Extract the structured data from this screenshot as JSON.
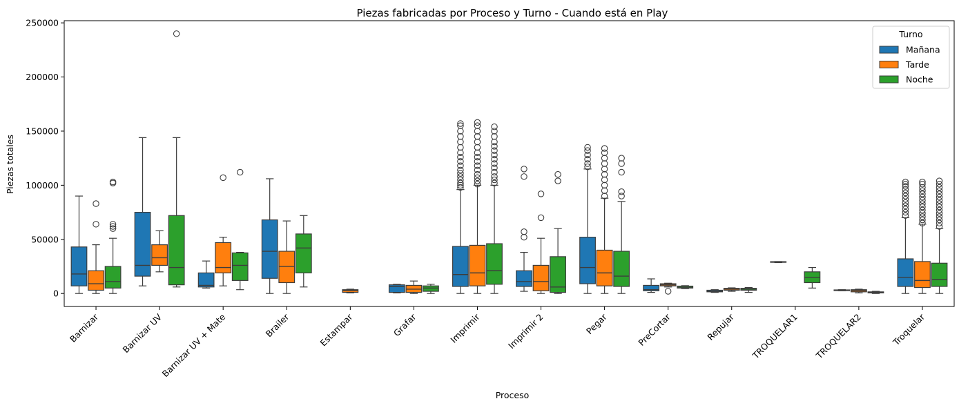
{
  "chart_data": {
    "type": "box",
    "title": "Piezas fabricadas por Proceso y Turno - Cuando está en Play",
    "xlabel": "Proceso",
    "ylabel": "Piezas totales",
    "ylim": [
      -12000,
      252000
    ],
    "yticks": [
      0,
      50000,
      100000,
      150000,
      200000,
      250000
    ],
    "ytick_labels": [
      "0",
      "50000",
      "100000",
      "150000",
      "200000",
      "250000"
    ],
    "grid": false,
    "legend": {
      "title": "Turno",
      "position": "top-right"
    },
    "categories": [
      "Barnizar",
      "Barnizar UV",
      "Barnizar UV + Mate",
      "Brailer",
      "Estampar",
      "Grafar",
      "Imprimir",
      "Imprimir 2",
      "Pegar",
      "PreCortar",
      "Repujar",
      "TROQUELAR1",
      "TROQUELAR2",
      "Troquelar"
    ],
    "series": [
      {
        "name": "Mañana",
        "color": "#1f77b4",
        "boxes": [
          {
            "whislo": 0,
            "q1": 7000,
            "med": 18000,
            "q3": 43000,
            "whishi": 90000,
            "fliers": []
          },
          {
            "whislo": 7000,
            "q1": 16000,
            "med": 26000,
            "q3": 75000,
            "whishi": 144000,
            "fliers": []
          },
          {
            "whislo": 5000,
            "q1": 6000,
            "med": 7500,
            "q3": 19000,
            "whishi": 30000,
            "fliers": []
          },
          {
            "whislo": 0,
            "q1": 14000,
            "med": 39000,
            "q3": 68000,
            "whishi": 106000,
            "fliers": []
          },
          null,
          {
            "whislo": 500,
            "q1": 1000,
            "med": 6500,
            "q3": 8000,
            "whishi": 8500,
            "fliers": []
          },
          {
            "whislo": 0,
            "q1": 6500,
            "med": 17500,
            "q3": 43500,
            "whishi": 96000,
            "fliers": [
              98000,
              100000,
              102000,
              105000,
              108000,
              111000,
              114000,
              118000,
              122000,
              126000,
              130000,
              135000,
              140000,
              145000,
              150000,
              155000,
              157000
            ]
          },
          {
            "whislo": 2000,
            "q1": 6500,
            "med": 11000,
            "q3": 21000,
            "whishi": 38000,
            "fliers": [
              52000,
              57000,
              108000,
              115000
            ]
          },
          {
            "whislo": 0,
            "q1": 9000,
            "med": 24000,
            "q3": 52000,
            "whishi": 115000,
            "fliers": [
              117000,
              120000,
              124000,
              128000,
              132000,
              135000
            ]
          },
          {
            "whislo": 1000,
            "q1": 2500,
            "med": 3500,
            "q3": 7500,
            "whishi": 13500,
            "fliers": []
          },
          {
            "whislo": 1000,
            "q1": 1500,
            "med": 2000,
            "q3": 3000,
            "whishi": 3500,
            "fliers": []
          },
          {
            "whislo": 28500,
            "q1": 29000,
            "med": 29200,
            "q3": 29400,
            "whishi": 29500,
            "fliers": []
          },
          {
            "whislo": 2500,
            "q1": 2700,
            "med": 3000,
            "q3": 3300,
            "whishi": 3500,
            "fliers": []
          },
          {
            "whislo": 0,
            "q1": 6500,
            "med": 15000,
            "q3": 32000,
            "whishi": 70000,
            "fliers": [
              72000,
              75000,
              78000,
              81000,
              84000,
              87000,
              90000,
              93000,
              96000,
              99000,
              101000,
              103000
            ]
          }
        ]
      },
      {
        "name": "Tarde",
        "color": "#ff7f0e",
        "boxes": [
          {
            "whislo": 0,
            "q1": 3000,
            "med": 9000,
            "q3": 21000,
            "whishi": 45000,
            "fliers": [
              64000,
              83000
            ]
          },
          {
            "whislo": 20000,
            "q1": 26000,
            "med": 33000,
            "q3": 45000,
            "whishi": 58000,
            "fliers": []
          },
          {
            "whislo": 7000,
            "q1": 19000,
            "med": 24000,
            "q3": 47000,
            "whishi": 52000,
            "fliers": [
              107000
            ]
          },
          {
            "whislo": 0,
            "q1": 10000,
            "med": 25000,
            "q3": 39000,
            "whishi": 67000,
            "fliers": []
          },
          {
            "whislo": 500,
            "q1": 1000,
            "med": 2500,
            "q3": 3500,
            "whishi": 4000,
            "fliers": []
          },
          {
            "whislo": 0,
            "q1": 1000,
            "med": 4000,
            "q3": 7500,
            "whishi": 11500,
            "fliers": []
          },
          {
            "whislo": 0,
            "q1": 7000,
            "med": 19000,
            "q3": 44500,
            "whishi": 100000,
            "fliers": [
              101000,
              104000,
              107000,
              110000,
              114000,
              118000,
              122000,
              126000,
              130000,
              135000,
              140000,
              145000,
              150000,
              155000,
              158000
            ]
          },
          {
            "whislo": 0,
            "q1": 2500,
            "med": 11000,
            "q3": 26000,
            "whishi": 51000,
            "fliers": [
              70000,
              92000
            ]
          },
          {
            "whislo": 0,
            "q1": 7000,
            "med": 19000,
            "q3": 40000,
            "whishi": 88000,
            "fliers": [
              90000,
              95000,
              100000,
              105000,
              110000,
              115000,
              120000,
              125000,
              130000,
              134000
            ]
          },
          {
            "whislo": 6000,
            "q1": 7000,
            "med": 8000,
            "q3": 9000,
            "whishi": 9500,
            "fliers": [
              2000
            ]
          },
          {
            "whislo": 2000,
            "q1": 3000,
            "med": 4000,
            "q3": 4800,
            "whishi": 5200,
            "fliers": []
          },
          null,
          {
            "whislo": 500,
            "q1": 1500,
            "med": 2500,
            "q3": 3500,
            "whishi": 4000,
            "fliers": []
          },
          {
            "whislo": 0,
            "q1": 5500,
            "med": 12000,
            "q3": 29500,
            "whishi": 64000,
            "fliers": [
              65000,
              68000,
              71000,
              74000,
              77000,
              80000,
              83000,
              86000,
              89000,
              92000,
              95000,
              98000,
              101000,
              103000
            ]
          }
        ]
      },
      {
        "name": "Noche",
        "color": "#2ca02c",
        "boxes": [
          {
            "whislo": 0,
            "q1": 5000,
            "med": 11000,
            "q3": 25000,
            "whishi": 51000,
            "fliers": [
              60000,
              62000,
              64000,
              102000,
              103000
            ]
          },
          {
            "whislo": 6000,
            "q1": 8000,
            "med": 24000,
            "q3": 72000,
            "whishi": 144000,
            "fliers": [
              240000
            ]
          },
          {
            "whislo": 3500,
            "q1": 12000,
            "med": 26000,
            "q3": 37500,
            "whishi": 38000,
            "fliers": [
              112000
            ]
          },
          {
            "whislo": 6000,
            "q1": 19000,
            "med": 42000,
            "q3": 55000,
            "whishi": 72000,
            "fliers": []
          },
          null,
          {
            "whislo": 0,
            "q1": 2000,
            "med": 5000,
            "q3": 7000,
            "whishi": 8500,
            "fliers": []
          },
          {
            "whislo": 0,
            "q1": 8500,
            "med": 21000,
            "q3": 46000,
            "whishi": 100000,
            "fliers": [
              102000,
              105000,
              108000,
              112000,
              116000,
              120000,
              124000,
              128000,
              132000,
              136000,
              140000,
              145000,
              150000,
              154000
            ]
          },
          {
            "whislo": 0,
            "q1": 1000,
            "med": 6000,
            "q3": 34000,
            "whishi": 60000,
            "fliers": [
              104000,
              110000
            ]
          },
          {
            "whislo": 0,
            "q1": 6500,
            "med": 16000,
            "q3": 39000,
            "whishi": 85000,
            "fliers": [
              90000,
              94000,
              112000,
              120000,
              125000
            ]
          },
          {
            "whislo": 4500,
            "q1": 5000,
            "med": 5800,
            "q3": 6800,
            "whishi": 7200,
            "fliers": []
          },
          {
            "whislo": 1000,
            "q1": 3000,
            "med": 4000,
            "q3": 4800,
            "whishi": 5500,
            "fliers": []
          },
          {
            "whislo": 5000,
            "q1": 10000,
            "med": 15000,
            "q3": 20000,
            "whishi": 24000,
            "fliers": []
          },
          {
            "whislo": 0,
            "q1": 500,
            "med": 1000,
            "q3": 1500,
            "whishi": 2000,
            "fliers": []
          },
          {
            "whislo": 0,
            "q1": 6500,
            "med": 13000,
            "q3": 28000,
            "whishi": 60000,
            "fliers": [
              62000,
              65000,
              68000,
              71000,
              74000,
              77000,
              80000,
              83000,
              86000,
              89000,
              92000,
              95000,
              98000,
              101000,
              104000
            ]
          }
        ]
      }
    ]
  }
}
